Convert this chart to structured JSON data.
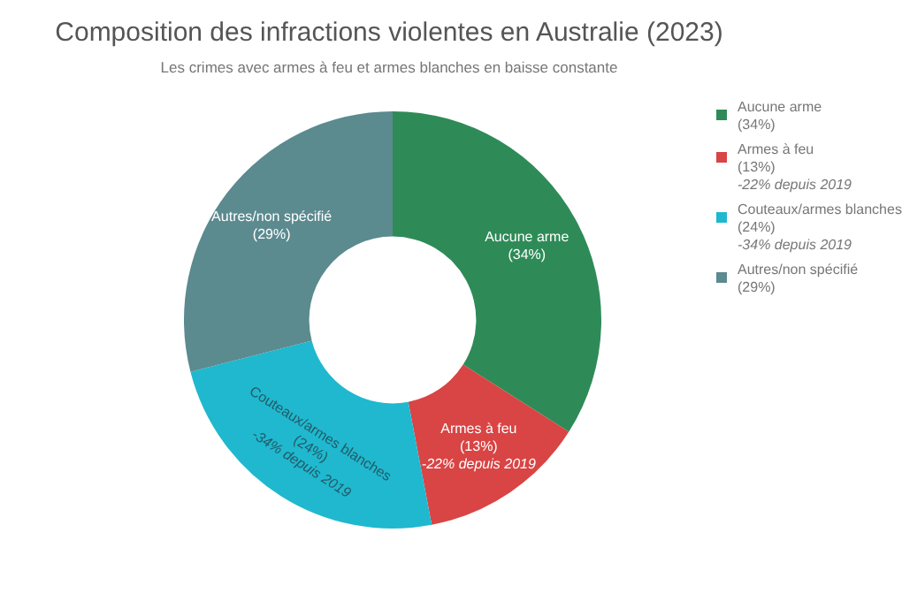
{
  "chart_data": {
    "type": "donut",
    "title": "Composition des infractions violentes en Australie (2023)",
    "subtitle": "Les crimes avec armes à feu et armes blanches en baisse constante",
    "categories": [
      "Aucune arme",
      "Armes à feu",
      "Couteaux/armes blanches",
      "Autres/non spécifié"
    ],
    "values": [
      34,
      13,
      24,
      29
    ],
    "value_labels": [
      "(34%)",
      "(13%)",
      "(24%)",
      "(29%)"
    ],
    "colors": [
      "#2e8b57",
      "#d94444",
      "#1fb8cf",
      "#5b8a8f"
    ],
    "annotations": [
      {
        "text": "-22% depuis 2019",
        "x": "Armes à feu"
      },
      {
        "text": "-34% depuis 2019",
        "x": "Couteaux/armes blanches"
      }
    ],
    "legend": "top right"
  }
}
